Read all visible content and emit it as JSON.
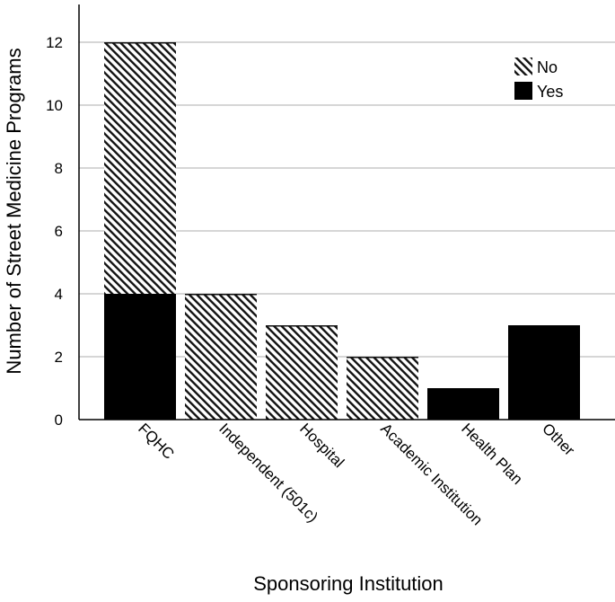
{
  "chart_data": {
    "type": "bar",
    "stacked": true,
    "xlabel": "Sponsoring Institution",
    "ylabel": "Number of Street Medicine Programs",
    "categories": [
      "FQHC",
      "Independent (501c)",
      "Hospital",
      "Academic Institution",
      "Health Plan",
      "Other"
    ],
    "series": [
      {
        "name": "Yes",
        "values": [
          4,
          0,
          0,
          0,
          1,
          3
        ],
        "color": "#000000",
        "pattern": "solid"
      },
      {
        "name": "No",
        "values": [
          8,
          4,
          3,
          2,
          0,
          0
        ],
        "color": "#000000",
        "pattern": "diagonal-hatch"
      }
    ],
    "ylim": [
      0,
      13.2
    ],
    "yticks": [
      0,
      2,
      4,
      6,
      8,
      10,
      12
    ],
    "grid": true,
    "legend": {
      "placement": "top-right",
      "order": [
        "No",
        "Yes"
      ]
    }
  }
}
